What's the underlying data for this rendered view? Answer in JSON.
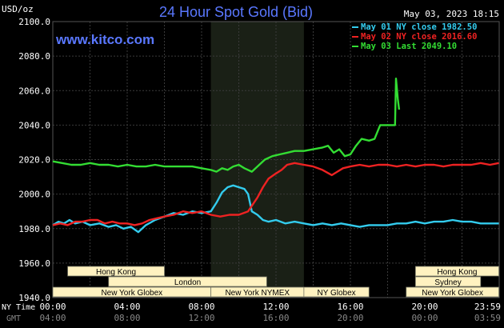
{
  "chart_data": {
    "type": "line",
    "title": "24 Hour Spot Gold (Bid)",
    "ylabel": "USD/oz",
    "brand": "www.kitco.com",
    "timestamp": "May 03, 2023 18:15",
    "ylim": [
      1940,
      2100
    ],
    "y_ticks": [
      "2100.0",
      "2080.0",
      "2060.0",
      "2040.0",
      "2020.0",
      "2000.0",
      "1980.0",
      "1960.0",
      "1940.0"
    ],
    "xlim_hours": [
      0,
      24
    ],
    "x_axis_nytime_label": "NY Time",
    "x_axis_gmt_label": "GMT",
    "x_ticks_nytime": [
      "00:00",
      "04:00",
      "08:00",
      "12:00",
      "16:00",
      "20:00",
      "23:59"
    ],
    "x_ticks_gmt": [
      "04:00",
      "08:00",
      "12:00",
      "16:00",
      "20:00",
      "00:00",
      "03:59"
    ],
    "shaded_hours": [
      8.5,
      13.5
    ],
    "grid": true,
    "legend_position": "top-right",
    "colors": {
      "background": "#000000",
      "grid": "#3a3a3a",
      "shaded": "#1a2016",
      "title": "#5a78ff",
      "brand": "#5a78ff",
      "axis_text": "#ffffff",
      "session_box_fill": "#fff2c0",
      "session_box_text": "#000000"
    },
    "series": [
      {
        "name": "May 01 NY close 1982.50",
        "color": "#33ccee",
        "points": [
          [
            0,
            1982
          ],
          [
            0.3,
            1984
          ],
          [
            0.6,
            1983
          ],
          [
            0.9,
            1985
          ],
          [
            1.2,
            1983
          ],
          [
            1.6,
            1984
          ],
          [
            2,
            1982
          ],
          [
            2.5,
            1983
          ],
          [
            3,
            1981
          ],
          [
            3.4,
            1982
          ],
          [
            3.8,
            1980
          ],
          [
            4.2,
            1981
          ],
          [
            4.6,
            1978
          ],
          [
            5,
            1982
          ],
          [
            5.5,
            1985
          ],
          [
            6,
            1987
          ],
          [
            6.5,
            1989
          ],
          [
            7,
            1988
          ],
          [
            7.5,
            1990
          ],
          [
            8,
            1989
          ],
          [
            8.5,
            1990
          ],
          [
            8.8,
            1995
          ],
          [
            9.1,
            2001
          ],
          [
            9.4,
            2004
          ],
          [
            9.7,
            2005
          ],
          [
            10,
            2004
          ],
          [
            10.3,
            2003
          ],
          [
            10.5,
            2000
          ],
          [
            10.7,
            1990
          ],
          [
            11,
            1988
          ],
          [
            11.3,
            1985
          ],
          [
            11.6,
            1984
          ],
          [
            12,
            1985
          ],
          [
            12.5,
            1983
          ],
          [
            13,
            1984
          ],
          [
            13.5,
            1983
          ],
          [
            14,
            1982
          ],
          [
            14.5,
            1983
          ],
          [
            15,
            1982
          ],
          [
            15.5,
            1983
          ],
          [
            16,
            1982
          ],
          [
            16.5,
            1981
          ],
          [
            17,
            1982
          ],
          [
            17.5,
            1982
          ],
          [
            18,
            1982
          ],
          [
            18.5,
            1983
          ],
          [
            19,
            1983
          ],
          [
            19.5,
            1984
          ],
          [
            20,
            1983
          ],
          [
            20.5,
            1984
          ],
          [
            21,
            1984
          ],
          [
            21.5,
            1985
          ],
          [
            22,
            1984
          ],
          [
            22.5,
            1984
          ],
          [
            23,
            1983
          ],
          [
            23.5,
            1983
          ],
          [
            23.98,
            1983
          ]
        ]
      },
      {
        "name": "May 02 NY close 2016.60",
        "color": "#ee2222",
        "points": [
          [
            0,
            1982
          ],
          [
            0.4,
            1983
          ],
          [
            0.8,
            1982
          ],
          [
            1.2,
            1984
          ],
          [
            1.6,
            1984
          ],
          [
            2,
            1985
          ],
          [
            2.4,
            1985
          ],
          [
            2.8,
            1983
          ],
          [
            3.2,
            1984
          ],
          [
            3.6,
            1983
          ],
          [
            4,
            1983
          ],
          [
            4.4,
            1982
          ],
          [
            4.8,
            1983
          ],
          [
            5.2,
            1985
          ],
          [
            5.6,
            1986
          ],
          [
            6,
            1987
          ],
          [
            6.5,
            1988
          ],
          [
            7,
            1990
          ],
          [
            7.5,
            1989
          ],
          [
            8,
            1990
          ],
          [
            8.5,
            1988
          ],
          [
            9,
            1987
          ],
          [
            9.5,
            1988
          ],
          [
            10,
            1988
          ],
          [
            10.5,
            1990
          ],
          [
            11,
            1998
          ],
          [
            11.3,
            2004
          ],
          [
            11.6,
            2009
          ],
          [
            12,
            2012
          ],
          [
            12.3,
            2014
          ],
          [
            12.6,
            2017
          ],
          [
            13,
            2018
          ],
          [
            13.5,
            2017
          ],
          [
            14,
            2016
          ],
          [
            14.5,
            2014
          ],
          [
            15,
            2011
          ],
          [
            15.3,
            2013
          ],
          [
            15.6,
            2015
          ],
          [
            16,
            2016
          ],
          [
            16.5,
            2017
          ],
          [
            17,
            2016
          ],
          [
            17.5,
            2017
          ],
          [
            18,
            2017
          ],
          [
            18.5,
            2016
          ],
          [
            19,
            2017
          ],
          [
            19.5,
            2016
          ],
          [
            20,
            2017
          ],
          [
            20.5,
            2017
          ],
          [
            21,
            2016
          ],
          [
            21.5,
            2017
          ],
          [
            22,
            2017
          ],
          [
            22.5,
            2017
          ],
          [
            23,
            2018
          ],
          [
            23.5,
            2017
          ],
          [
            23.98,
            2018
          ]
        ]
      },
      {
        "name": "May 03 Last 2049.10",
        "color": "#33dd33",
        "points": [
          [
            0,
            2019
          ],
          [
            0.5,
            2018
          ],
          [
            1,
            2017
          ],
          [
            1.5,
            2017
          ],
          [
            2,
            2018
          ],
          [
            2.5,
            2017
          ],
          [
            3,
            2017
          ],
          [
            3.5,
            2016
          ],
          [
            4,
            2017
          ],
          [
            4.5,
            2016
          ],
          [
            5,
            2016
          ],
          [
            5.5,
            2017
          ],
          [
            6,
            2016
          ],
          [
            6.5,
            2016
          ],
          [
            7,
            2016
          ],
          [
            7.5,
            2016
          ],
          [
            8,
            2015
          ],
          [
            8.5,
            2014
          ],
          [
            8.8,
            2013
          ],
          [
            9.1,
            2015
          ],
          [
            9.4,
            2014
          ],
          [
            9.7,
            2016
          ],
          [
            10,
            2017
          ],
          [
            10.3,
            2015
          ],
          [
            10.7,
            2013
          ],
          [
            11,
            2016
          ],
          [
            11.4,
            2020
          ],
          [
            11.8,
            2022
          ],
          [
            12.2,
            2023
          ],
          [
            12.6,
            2024
          ],
          [
            13,
            2025
          ],
          [
            13.5,
            2025
          ],
          [
            14,
            2026
          ],
          [
            14.5,
            2027
          ],
          [
            14.8,
            2028
          ],
          [
            15.1,
            2024
          ],
          [
            15.4,
            2026
          ],
          [
            15.7,
            2022
          ],
          [
            16,
            2023
          ],
          [
            16.3,
            2028
          ],
          [
            16.6,
            2032
          ],
          [
            17,
            2031
          ],
          [
            17.3,
            2032
          ],
          [
            17.6,
            2040
          ],
          [
            18,
            2040
          ],
          [
            18.3,
            2040
          ],
          [
            18.4,
            2040
          ],
          [
            18.45,
            2067
          ],
          [
            18.55,
            2055
          ],
          [
            18.62,
            2049
          ]
        ]
      }
    ],
    "sessions": [
      {
        "label": "Hong Kong",
        "row": 0,
        "start": 0.8,
        "end": 6.0
      },
      {
        "label": "London",
        "row": 1,
        "start": 3.0,
        "end": 11.5
      },
      {
        "label": "New York Globex",
        "row": 2,
        "start": 0,
        "end": 8.5
      },
      {
        "label": "New York NYMEX",
        "row": 2,
        "start": 8.5,
        "end": 13.5
      },
      {
        "label": "NY Globex",
        "row": 2,
        "start": 13.5,
        "end": 17.0
      },
      {
        "label": "Hong Kong",
        "row": 0,
        "start": 19.5,
        "end": 23.98
      },
      {
        "label": "Sydney",
        "row": 1,
        "start": 19.5,
        "end": 23.0
      },
      {
        "label": "New York Globex",
        "row": 2,
        "start": 19.0,
        "end": 23.98
      }
    ]
  }
}
